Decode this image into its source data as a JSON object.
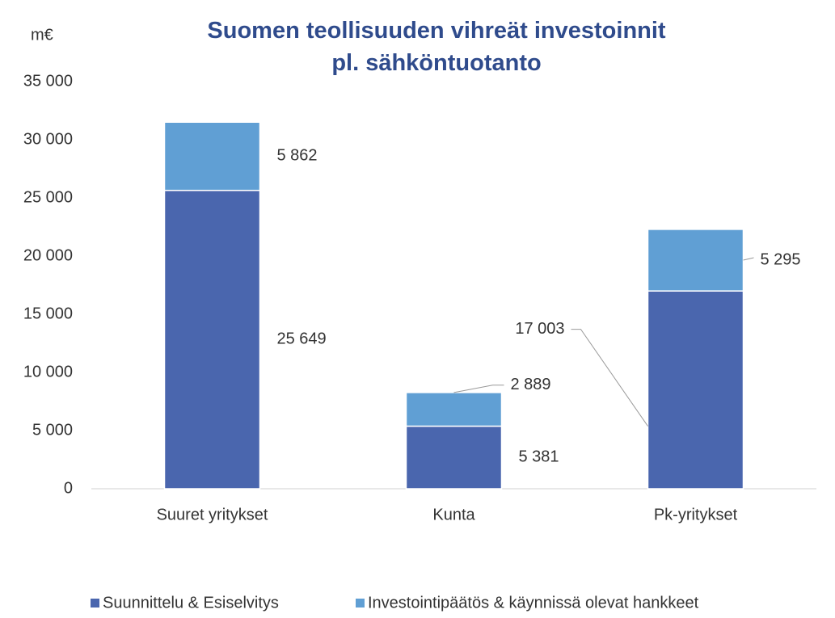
{
  "chart_data": {
    "type": "stacked_bar",
    "title": "Suomen teollisuuden vihreät investoinnit\npl. sähköntuotanto",
    "ylabel": "m€",
    "categories": [
      "Suuret yritykset",
      "Kunta",
      "Pk-yritykset"
    ],
    "series": [
      {
        "name": "Suunnittelu & Esiselvitys",
        "color": "#4a66ae",
        "values": [
          25649,
          5381,
          17003
        ],
        "value_labels": [
          "25 649",
          "5 381",
          "17 003"
        ]
      },
      {
        "name": "Investointipäätös & käynnissä olevat hankkeet",
        "color": "#609fd4",
        "values": [
          5862,
          2889,
          5295
        ],
        "value_labels": [
          "5 862",
          "2 889",
          "5 295"
        ]
      }
    ],
    "ylim": [
      0,
      35000
    ],
    "yticks": [
      0,
      {
        "value": 5000,
        "label": "5 000"
      },
      {
        "value": 10000,
        "label": "10 000"
      },
      {
        "value": 15000,
        "label": "15 000"
      },
      {
        "value": 20000,
        "label": "20 000"
      },
      {
        "value": 25000,
        "label": "25 000"
      },
      {
        "value": 30000,
        "label": "30 000"
      },
      {
        "value": 35000,
        "label": "35 000"
      }
    ],
    "legend": "bottom"
  }
}
